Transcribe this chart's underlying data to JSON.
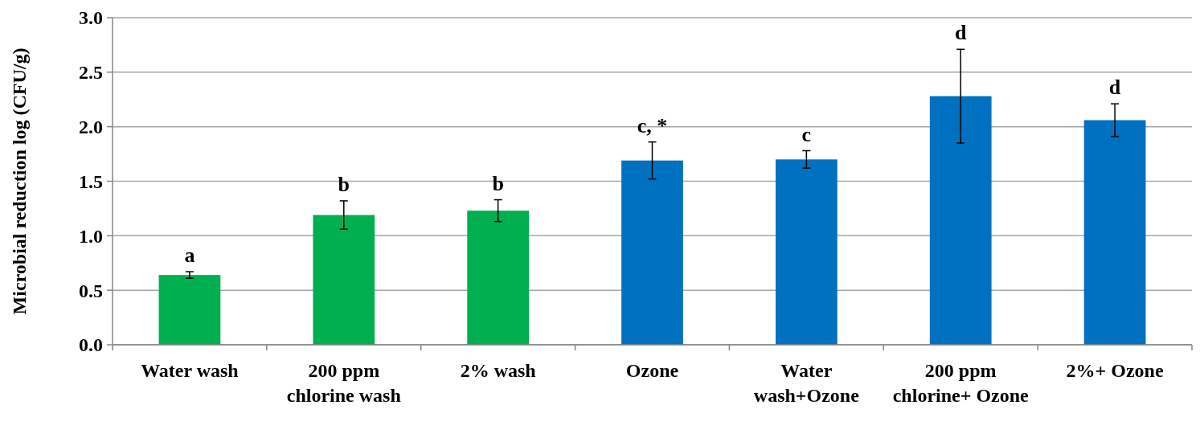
{
  "chart_data": {
    "type": "bar",
    "ylabel": "Microbial reduction log (CFU/g)",
    "categories": [
      "Water wash",
      "200 ppm chlorine wash",
      "2% wash",
      "Ozone",
      "Water wash+Ozone",
      "200 ppm chlorine+ Ozone",
      "2%+ Ozone"
    ],
    "values": [
      0.64,
      1.19,
      1.23,
      1.69,
      1.7,
      2.28,
      2.06
    ],
    "colors": [
      "#00b050",
      "#00b050",
      "#00b050",
      "#0070c0",
      "#0070c0",
      "#0070c0",
      "#0070c0"
    ],
    "errors": [
      0.03,
      0.13,
      0.1,
      0.17,
      0.08,
      0.43,
      0.15
    ],
    "ylim": [
      0,
      3
    ],
    "yticks": [
      {
        "value": 0,
        "label": "0.0"
      },
      {
        "value": 0.5,
        "label": "0.5"
      },
      {
        "value": 1,
        "label": "1.0"
      },
      {
        "value": 1.5,
        "label": "1.5"
      },
      {
        "value": 2,
        "label": "2.0"
      },
      {
        "value": 2.5,
        "label": "2.5"
      },
      {
        "value": 3,
        "label": "3.0"
      }
    ],
    "grid": "y",
    "annotations": [
      {
        "text": "a",
        "x": "Water wash",
        "y": 0.67
      },
      {
        "text": "b",
        "x": "200 ppm chlorine wash",
        "y": 1.32
      },
      {
        "text": "b",
        "x": "2% wash",
        "y": 1.33
      },
      {
        "text": "c, *",
        "x": "Ozone",
        "y": 1.86
      },
      {
        "text": "c",
        "x": "Water wash+Ozone",
        "y": 1.78
      },
      {
        "text": "d",
        "x": "200 ppm chlorine+ Ozone",
        "y": 2.71
      },
      {
        "text": "d",
        "x": "2%+ Ozone",
        "y": 2.21
      }
    ]
  }
}
